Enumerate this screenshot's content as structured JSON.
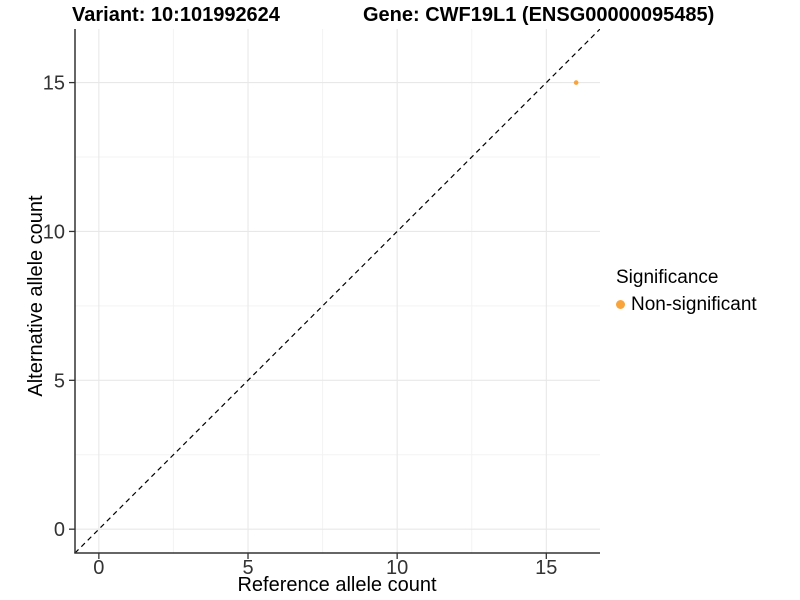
{
  "titles": {
    "variant": "Variant: 10:101992624",
    "gene": "Gene: CWF19L1 (ENSG00000095485)"
  },
  "chart_data": {
    "type": "scatter",
    "title": "Variant: 10:101992624   Gene: CWF19L1 (ENSG00000095485)",
    "xlabel": "Reference allele count",
    "ylabel": "Alternative allele count",
    "xlim": [
      -0.8,
      16.8
    ],
    "ylim": [
      -0.8,
      16.8
    ],
    "x_ticks": [
      0,
      5,
      10,
      15
    ],
    "y_ticks": [
      0,
      5,
      10,
      15
    ],
    "x_minor_ticks": [
      2.5,
      7.5,
      12.5
    ],
    "y_minor_ticks": [
      2.5,
      7.5,
      12.5
    ],
    "grid": true,
    "points": [
      {
        "x": 16,
        "y": 15,
        "series": "Non-significant"
      }
    ],
    "reference_line": {
      "type": "abline",
      "slope": 1,
      "intercept": 0,
      "style": "dashed",
      "color": "#000000"
    },
    "legend": {
      "title": "Significance",
      "position": "right",
      "items": [
        {
          "label": "Non-significant",
          "color": "#F9A43B"
        }
      ]
    },
    "colors": {
      "point": "#F9A43B",
      "grid_major": "#E8E8E8",
      "grid_minor": "#F3F3F3",
      "axis_line": "#333333",
      "tick_text": "#333333"
    }
  }
}
